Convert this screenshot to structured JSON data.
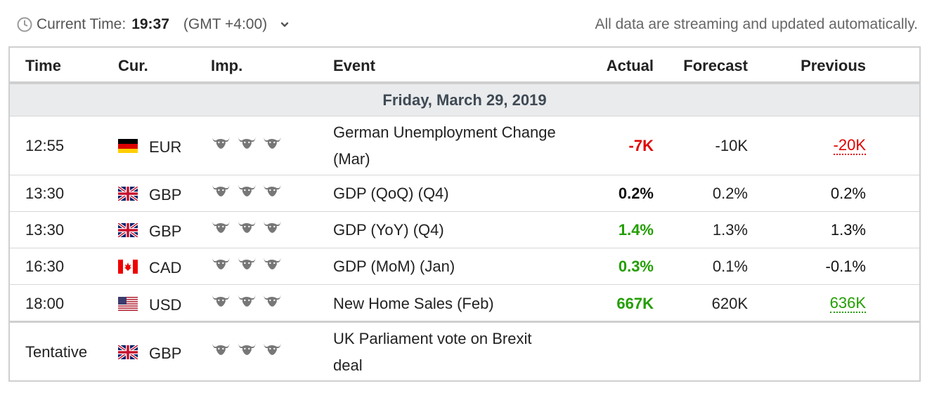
{
  "header": {
    "current_time_label": "Current Time:",
    "time": "19:37",
    "timezone": "(GMT +4:00)",
    "streaming_note": "All data are streaming and updated automatically.",
    "clock_icon": "clock-icon",
    "dropdown_icon": "chevron-down-icon"
  },
  "columns": {
    "time": "Time",
    "currency": "Cur.",
    "importance": "Imp.",
    "event": "Event",
    "actual": "Actual",
    "forecast": "Forecast",
    "previous": "Previous"
  },
  "date_heading": "Friday, March 29, 2019",
  "colors": {
    "negative": "#e00000",
    "positive": "#229e00",
    "bull_icon": "#777777",
    "date_bg": "#e9ebec"
  },
  "rows": [
    {
      "time": "12:55",
      "flag": "germany-flag",
      "currency": "EUR",
      "importance": 3,
      "event_line1": "German Unemployment Change",
      "event_line2": "(Mar)",
      "actual": "-7K",
      "actual_color": "red",
      "forecast": "-10K",
      "previous": "-20K",
      "previous_style": "revised-red"
    },
    {
      "time": "13:30",
      "flag": "uk-flag",
      "currency": "GBP",
      "importance": 3,
      "event_line1": "GDP (QoQ) (Q4)",
      "actual": "0.2%",
      "actual_color": "black",
      "forecast": "0.2%",
      "previous": "0.2%"
    },
    {
      "time": "13:30",
      "flag": "uk-flag",
      "currency": "GBP",
      "importance": 3,
      "event_line1": "GDP (YoY) (Q4)",
      "actual": "1.4%",
      "actual_color": "green",
      "forecast": "1.3%",
      "previous": "1.3%"
    },
    {
      "time": "16:30",
      "flag": "canada-flag",
      "currency": "CAD",
      "importance": 3,
      "event_line1": "GDP (MoM) (Jan)",
      "actual": "0.3%",
      "actual_color": "green",
      "forecast": "0.1%",
      "previous": "-0.1%"
    },
    {
      "time": "18:00",
      "flag": "usa-flag",
      "currency": "USD",
      "importance": 3,
      "event_line1": "New Home Sales (Feb)",
      "actual": "667K",
      "actual_color": "green",
      "forecast": "620K",
      "previous": "636K",
      "previous_style": "revised-green"
    },
    {
      "time": "Tentative",
      "flag": "uk-flag",
      "currency": "GBP",
      "importance": 3,
      "event_line1": "UK Parliament vote on Brexit",
      "event_line2": "deal",
      "actual": "",
      "forecast": "",
      "previous": ""
    }
  ]
}
